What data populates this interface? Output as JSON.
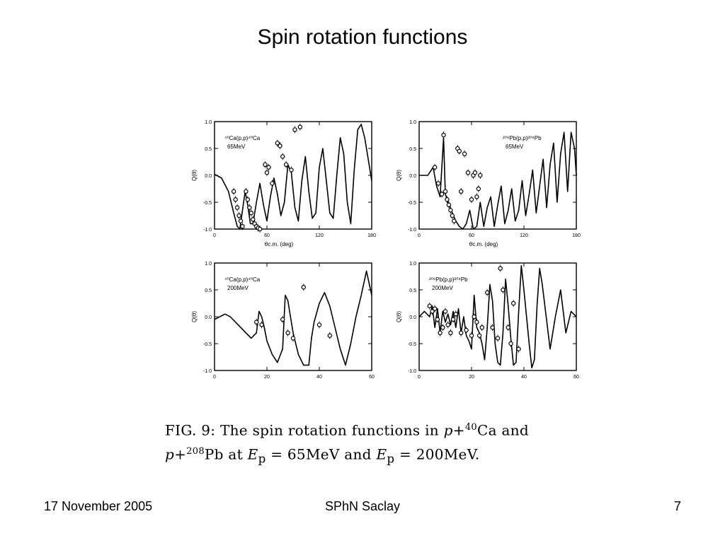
{
  "slide": {
    "title": "Spin rotation functions"
  },
  "caption": {
    "lead": "FIG. 9: The spin rotation functions in ",
    "p1": "p",
    "plus1": "+",
    "mass1": "40",
    "el1": "Ca",
    "and1": " and",
    "p2": "p",
    "plus2": "+",
    "mass2": "208",
    "el2": "Pb",
    "at": " at ",
    "e1": "E",
    "sub1": "p",
    "eq1": " = 65MeV",
    "and2": " and ",
    "e2": "E",
    "sub2": "p",
    "eq2": " = 200MeV."
  },
  "footer": {
    "date": "17 November 2005",
    "org": "SPhN Saclay",
    "page": "7"
  },
  "chart_data": [
    {
      "type": "line",
      "panel": "top-left",
      "annotation": [
        "⁴⁰Ca(p,p)⁴⁰Ca",
        "65MeV"
      ],
      "ylabel": "Q(θ)",
      "xlabel": "θc.m. (deg)",
      "ylim": [
        -1.0,
        1.0
      ],
      "xlim": [
        0,
        180
      ],
      "x_ticks": [
        "0",
        "60",
        "120",
        "180"
      ],
      "y_ticks": [
        "1.0",
        "0.5",
        "0.0",
        "-0.5",
        "-1.0"
      ],
      "series": [
        {
          "kind": "curve",
          "x": [
            0,
            8,
            16,
            22,
            26,
            29,
            32,
            35,
            38,
            41,
            44,
            48,
            52,
            56,
            60,
            64,
            68,
            72,
            76,
            80,
            84,
            88,
            92,
            96,
            100,
            104,
            108,
            112,
            116,
            120,
            124,
            128,
            132,
            136,
            140,
            144,
            148,
            152,
            156,
            160,
            164,
            168,
            172,
            176,
            180
          ],
          "y": [
            0.02,
            -0.05,
            -0.3,
            -0.7,
            -0.95,
            -1.0,
            -0.65,
            -0.3,
            -0.55,
            -0.9,
            -0.9,
            -0.5,
            -0.15,
            -0.55,
            -0.85,
            -0.4,
            -0.05,
            -0.35,
            -0.75,
            -0.5,
            0.2,
            0.05,
            -0.6,
            -0.85,
            -0.1,
            0.35,
            -0.3,
            -0.8,
            -0.7,
            0.15,
            0.5,
            -0.1,
            -0.7,
            -0.8,
            0.0,
            0.7,
            0.4,
            -0.5,
            -0.9,
            0.1,
            0.85,
            0.95,
            0.7,
            0.3,
            -0.1
          ]
        },
        {
          "kind": "points",
          "x": [
            22,
            24,
            26,
            28,
            30,
            32,
            36,
            38,
            40,
            42,
            44,
            46,
            48,
            50,
            52,
            58,
            60,
            62,
            66,
            72,
            75,
            78,
            82,
            88,
            92,
            98
          ],
          "y": [
            -0.3,
            -0.45,
            -0.6,
            -0.75,
            -0.85,
            -0.95,
            -0.3,
            -0.45,
            -0.6,
            -0.7,
            -0.82,
            -0.9,
            -0.95,
            -0.98,
            -1.0,
            0.2,
            0.05,
            0.15,
            -0.15,
            0.6,
            0.55,
            0.35,
            0.2,
            0.1,
            0.85,
            0.9
          ]
        }
      ]
    },
    {
      "type": "line",
      "panel": "top-right",
      "annotation": [
        "²⁰⁸Pb(p,p)²⁰⁸Pb",
        "65MeV"
      ],
      "ylabel": "Q(θ)",
      "xlabel": "θc.m. (deg)",
      "ylim": [
        -1.0,
        1.0
      ],
      "xlim": [
        0,
        180
      ],
      "x_ticks": [
        "0",
        "60",
        "120",
        "180"
      ],
      "y_ticks": [
        "1.0",
        "0.5",
        "0.0",
        "-0.5",
        "-1.0"
      ],
      "series": [
        {
          "kind": "curve",
          "x": [
            0,
            10,
            16,
            20,
            24,
            28,
            30,
            34,
            38,
            42,
            46,
            50,
            54,
            58,
            62,
            66,
            70,
            74,
            78,
            82,
            86,
            90,
            94,
            98,
            102,
            106,
            110,
            114,
            118,
            122,
            126,
            130,
            134,
            138,
            142,
            146,
            150,
            154,
            158,
            162,
            166,
            170,
            174,
            178,
            180
          ],
          "y": [
            0.0,
            0.0,
            0.15,
            -0.2,
            -0.4,
            0.7,
            -0.35,
            -0.55,
            -0.7,
            -0.85,
            -0.95,
            -1.0,
            -0.9,
            -0.65,
            -1.0,
            -0.95,
            -0.5,
            -0.95,
            -0.6,
            -0.4,
            -0.95,
            -0.55,
            -0.2,
            -0.9,
            -0.65,
            -0.25,
            -0.85,
            -0.65,
            -0.1,
            -0.75,
            -0.35,
            0.1,
            -0.7,
            -0.2,
            0.3,
            -0.6,
            0.2,
            0.6,
            -0.5,
            0.4,
            0.8,
            -0.3,
            0.8,
            0.5,
            0.0
          ]
        },
        {
          "kind": "points",
          "x": [
            18,
            22,
            26,
            28,
            30,
            32,
            34,
            36,
            38,
            40,
            44,
            46,
            48,
            52,
            56,
            60,
            62,
            64,
            66,
            68,
            70
          ],
          "y": [
            0.15,
            -0.15,
            -0.35,
            0.75,
            -0.3,
            -0.45,
            -0.55,
            -0.65,
            -0.75,
            -0.85,
            0.5,
            0.45,
            -0.3,
            0.4,
            0.05,
            -0.45,
            0.0,
            0.05,
            -0.4,
            -0.25,
            0.0
          ]
        }
      ]
    },
    {
      "type": "line",
      "panel": "bottom-left",
      "annotation": [
        "⁴⁰Ca(p,p)⁴⁰Ca",
        "200MeV"
      ],
      "ylabel": "Q(θ)",
      "xlabel": "",
      "ylim": [
        -1.0,
        1.0
      ],
      "xlim": [
        0,
        60
      ],
      "x_ticks": [
        "0",
        "20",
        "40",
        "60"
      ],
      "y_ticks": [
        "1.0",
        "0.5",
        "0.0",
        "-0.5",
        "-1.0"
      ],
      "series": [
        {
          "kind": "curve",
          "x": [
            0,
            2,
            4,
            6,
            8,
            10,
            12,
            14,
            16,
            17,
            18,
            19,
            20,
            22,
            24,
            26,
            27,
            28,
            29,
            30,
            32,
            34,
            36,
            37,
            38,
            40,
            42,
            44,
            46,
            48,
            50,
            52,
            54,
            56,
            58,
            60
          ],
          "y": [
            -0.05,
            0.0,
            0.05,
            0.0,
            -0.1,
            -0.2,
            -0.3,
            -0.4,
            -0.3,
            0.1,
            0.0,
            -0.2,
            -0.45,
            -0.7,
            -0.85,
            -0.6,
            0.4,
            0.3,
            0.0,
            -0.3,
            -0.7,
            -0.9,
            -0.9,
            -0.4,
            -0.1,
            0.25,
            0.45,
            0.2,
            -0.2,
            -0.6,
            -0.9,
            -0.5,
            0.0,
            0.4,
            0.85,
            0.4
          ]
        },
        {
          "kind": "points",
          "x": [
            16,
            18,
            26,
            28,
            30,
            34,
            40,
            44
          ],
          "y": [
            -0.1,
            -0.15,
            -0.05,
            -0.3,
            -0.4,
            0.55,
            -0.15,
            -0.35
          ]
        }
      ]
    },
    {
      "type": "line",
      "panel": "bottom-right",
      "annotation": [
        "²⁰⁸Pb(p,p)²⁰⁸Pb",
        "200MeV"
      ],
      "ylabel": "Q(θ)",
      "xlabel": "",
      "ylim": [
        -1.0,
        1.0
      ],
      "xlim": [
        0,
        60
      ],
      "x_ticks": [
        "0",
        "20",
        "40",
        "60"
      ],
      "y_ticks": [
        "1.0",
        "0.5",
        "0.0",
        "-0.5",
        "-1.0"
      ],
      "series": [
        {
          "kind": "curve",
          "x": [
            0,
            2,
            4,
            5,
            6,
            7,
            8,
            9,
            10,
            11,
            12,
            13,
            14,
            15,
            16,
            17,
            18,
            19,
            20,
            21,
            22,
            23,
            24,
            25,
            26,
            27,
            28,
            29,
            30,
            31,
            32,
            33,
            34,
            35,
            36,
            37,
            38,
            39,
            40,
            41,
            42,
            43,
            44,
            45,
            46,
            47,
            48,
            49,
            50,
            52,
            54,
            56,
            58,
            60
          ],
          "y": [
            0.0,
            0.1,
            0.0,
            0.2,
            -0.2,
            0.15,
            -0.3,
            0.1,
            -0.1,
            0.05,
            -0.15,
            0.1,
            -0.2,
            0.15,
            -0.3,
            0.0,
            -0.35,
            -0.45,
            -0.6,
            0.4,
            -0.2,
            -0.3,
            -0.5,
            -0.8,
            -0.2,
            0.6,
            0.3,
            -0.5,
            -0.85,
            -0.9,
            -0.3,
            0.7,
            0.2,
            -0.4,
            -0.9,
            -0.85,
            0.1,
            0.95,
            0.5,
            0.0,
            -0.5,
            -0.95,
            -0.8,
            0.2,
            0.9,
            0.6,
            0.2,
            -0.2,
            -0.6,
            0.0,
            0.5,
            -0.3,
            0.1,
            0.0
          ]
        },
        {
          "kind": "points",
          "x": [
            4,
            5,
            6,
            7,
            8,
            9,
            10,
            11,
            12,
            13,
            14,
            16,
            18,
            20,
            21,
            22,
            23,
            24,
            26,
            28,
            30,
            31,
            32,
            34,
            35,
            36,
            38
          ],
          "y": [
            0.2,
            0.1,
            0.15,
            -0.05,
            -0.3,
            -0.2,
            0.1,
            -0.15,
            -0.3,
            -0.05,
            0.05,
            -0.3,
            -0.25,
            -0.35,
            0.0,
            -0.1,
            -0.35,
            -0.2,
            0.45,
            -0.2,
            -0.4,
            0.9,
            0.5,
            -0.2,
            -0.5,
            0.25,
            -0.6
          ]
        }
      ]
    }
  ]
}
